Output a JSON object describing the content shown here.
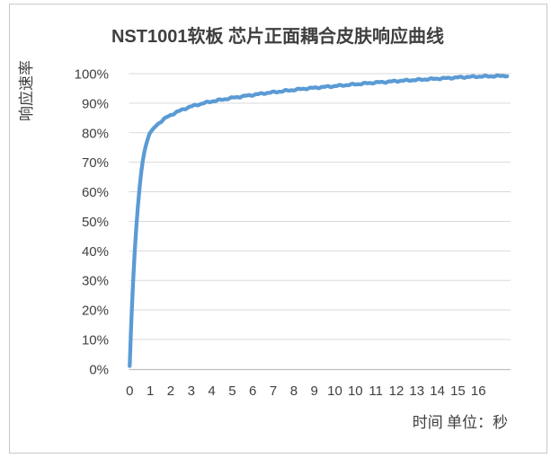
{
  "chart_data": {
    "type": "line",
    "title": "NST1001软板 芯片正面耦合皮肤响应曲线",
    "ylabel": "响应速率",
    "xlabel": "时间 单位：秒",
    "ytick_labels": [
      "0%",
      "10%",
      "20%",
      "30%",
      "40%",
      "50%",
      "60%",
      "70%",
      "80%",
      "90%",
      "100%"
    ],
    "xtick_labels": [
      "0",
      "1",
      "2",
      "3",
      "4",
      "5",
      "6",
      "7",
      "8",
      "9",
      "10",
      "10",
      "11",
      "12",
      "13",
      "14",
      "15",
      "16"
    ],
    "ylim": [
      0,
      100
    ],
    "x_units_span": [
      0,
      18.4
    ],
    "grid": "horizontal",
    "legend": "none",
    "colors": {
      "line": "#5B9BD5",
      "gridline": "#D9D9D9",
      "axis_line": "#BFBFBF",
      "text": "#404040",
      "chart_border": "#C9C9C9"
    },
    "series": [
      {
        "name": "响应速率",
        "points": [
          [
            0.0,
            1
          ],
          [
            0.1,
            20
          ],
          [
            0.2,
            35
          ],
          [
            0.3,
            46
          ],
          [
            0.4,
            55
          ],
          [
            0.5,
            63
          ],
          [
            0.6,
            69
          ],
          [
            0.7,
            73
          ],
          [
            0.8,
            76
          ],
          [
            0.95,
            79.5
          ],
          [
            1.1,
            81
          ],
          [
            1.3,
            82.5
          ],
          [
            1.5,
            83.7
          ],
          [
            1.8,
            85.2
          ],
          [
            2.0,
            86
          ],
          [
            2.3,
            87
          ],
          [
            2.6,
            87.9
          ],
          [
            2.9,
            88.7
          ],
          [
            3.2,
            89.3
          ],
          [
            3.6,
            90
          ],
          [
            4.0,
            90.6
          ],
          [
            4.5,
            91.2
          ],
          [
            5.0,
            91.8
          ],
          [
            5.5,
            92.3
          ],
          [
            6.0,
            92.8
          ],
          [
            6.5,
            93.3
          ],
          [
            7.0,
            93.7
          ],
          [
            7.5,
            94.1
          ],
          [
            8.0,
            94.5
          ],
          [
            8.5,
            94.9
          ],
          [
            9.0,
            95.2
          ],
          [
            9.5,
            95.5
          ],
          [
            10.0,
            95.8
          ],
          [
            10.5,
            96.1
          ],
          [
            11.0,
            96.4
          ],
          [
            11.5,
            96.7
          ],
          [
            12.0,
            97.0
          ],
          [
            12.5,
            97.2
          ],
          [
            13.0,
            97.5
          ],
          [
            13.5,
            97.7
          ],
          [
            14.0,
            97.9
          ],
          [
            14.5,
            98.1
          ],
          [
            15.0,
            98.3
          ],
          [
            15.5,
            98.5
          ],
          [
            16.0,
            98.7
          ],
          [
            16.5,
            98.9
          ],
          [
            17.0,
            99.0
          ],
          [
            17.5,
            99.1
          ],
          [
            18.0,
            99.2
          ],
          [
            18.4,
            99.3
          ]
        ]
      }
    ]
  }
}
